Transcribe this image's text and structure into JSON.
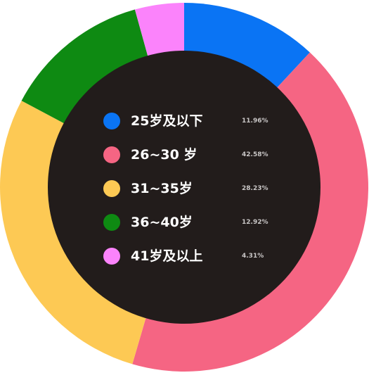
{
  "chart_data": {
    "type": "pie",
    "variant": "donut",
    "title": "",
    "categories": [
      "25岁及以下",
      "26~30 岁",
      "31~35岁",
      "36~40岁",
      "41岁及以上"
    ],
    "values": [
      11.96,
      42.58,
      28.23,
      12.92,
      4.31
    ],
    "value_labels": [
      "11.96%",
      "42.58%",
      "28.23%",
      "12.92%",
      "4.31%"
    ],
    "colors": [
      "#0a74f4",
      "#f56583",
      "#fdc954",
      "#0e8a12",
      "#fb83fb"
    ],
    "center_color": "#221c1b",
    "start": "top",
    "direction": "clockwise",
    "legend_position": "center"
  }
}
